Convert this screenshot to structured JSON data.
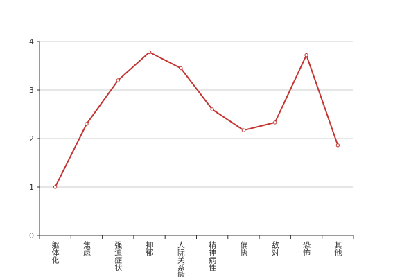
{
  "chart_data": {
    "type": "line",
    "categories": [
      "躯体化",
      "焦虑",
      "强迫症状",
      "抑郁",
      "人际关系敏感",
      "精神病性",
      "偏执",
      "敌对",
      "恐怖",
      "其他"
    ],
    "values": [
      1.0,
      2.3,
      3.2,
      3.78,
      3.45,
      2.6,
      2.17,
      2.33,
      3.72,
      1.86
    ],
    "color": "#c23531",
    "ylim": [
      0,
      4
    ],
    "yticks": [
      0,
      1,
      2,
      3,
      4
    ],
    "grid": true
  }
}
